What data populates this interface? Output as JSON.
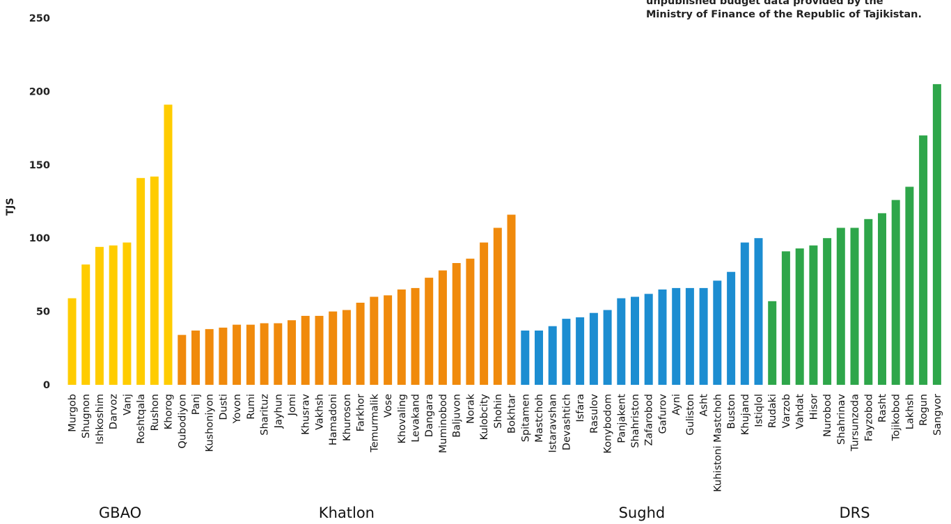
{
  "source_note": {
    "lines": [
      "unpublished budget data provided by the",
      "Ministry of Finance of the Republic of Tajikistan."
    ]
  },
  "chart_data": {
    "type": "bar",
    "ylabel": "TJS",
    "xlabel": "",
    "ylim": [
      0,
      250
    ],
    "yticks": [
      0,
      50,
      100,
      150,
      200,
      250
    ],
    "grid": false,
    "legend": "none",
    "groups": [
      {
        "name": "GBAO",
        "color": "#FFCC00",
        "categories": [
          "Murgob",
          "Shugnon",
          "Ishkoshim",
          "Darvoz",
          "Vanj",
          "Roshtqala",
          "Rushon",
          "Khorog"
        ],
        "values": [
          59,
          82,
          94,
          95,
          97,
          141,
          142,
          191
        ]
      },
      {
        "name": "Khatlon",
        "color": "#F08A0C",
        "categories": [
          "Qubodiyon",
          "Panj",
          "Kushoniyon",
          "Dusti",
          "Yovon",
          "Rumi",
          "Sharituz",
          "Jayhun",
          "Jomi",
          "Khusrav",
          "Vakhsh",
          "Hamadoni",
          "Khuroson",
          "Farkhor",
          "Temurmalik",
          "Vose",
          "Khovaling",
          "Levakand",
          "Dangara",
          "Muminobod",
          "Baljuvon",
          "Norak",
          "Kulobcity",
          "Shohin",
          "Bokhtar"
        ],
        "values": [
          34,
          37,
          38,
          39,
          41,
          41,
          42,
          42,
          44,
          47,
          47,
          50,
          51,
          56,
          60,
          61,
          65,
          66,
          73,
          78,
          83,
          86,
          97,
          107,
          116
        ]
      },
      {
        "name": "Sughd",
        "color": "#1C8DD1",
        "categories": [
          "Spitamen",
          "Mastchoh",
          "Istaravshan",
          "Devashtich",
          "Isfara",
          "Rasulov",
          "Konybodom",
          "Panjakent",
          "Shahriston",
          "Zafarobod",
          "Gafurov",
          "Ayni",
          "Guliston",
          "Asht",
          "Kuhistoni Mastchoh",
          "Buston",
          "Khujand",
          "Istiqlol"
        ],
        "values": [
          37,
          37,
          40,
          45,
          46,
          49,
          51,
          59,
          60,
          62,
          65,
          66,
          66,
          66,
          71,
          77,
          97,
          100
        ]
      },
      {
        "name": "DRS",
        "color": "#2EA64A",
        "categories": [
          "Rudaki",
          "Varzob",
          "Vahdat",
          "Hisor",
          "Nurobod",
          "Shahrinav",
          "Tursunzoda",
          "Fayzobod",
          "Rasht",
          "Tojikobod",
          "Lakhsh",
          "Rogun",
          "Sangvor"
        ],
        "values": [
          57,
          91,
          93,
          95,
          100,
          107,
          107,
          113,
          117,
          126,
          135,
          170,
          205
        ]
      }
    ]
  }
}
